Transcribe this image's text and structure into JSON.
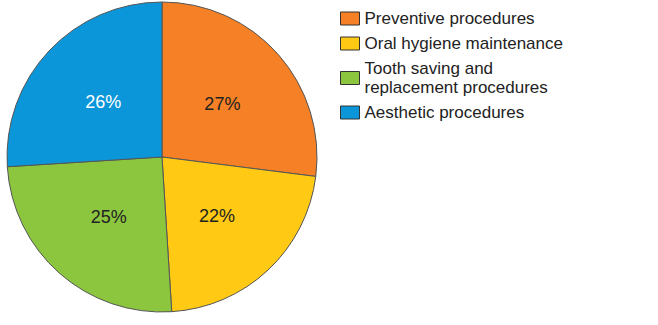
{
  "chart_data": {
    "type": "pie",
    "categories": [
      "Preventive procedures",
      "Oral hygiene maintenance",
      "Tooth saving and\nreplacement procedures",
      "Aesthetic procedures"
    ],
    "values": [
      27,
      22,
      25,
      26
    ],
    "value_labels": [
      "27%",
      "22%",
      "25%",
      "26%"
    ],
    "colors": [
      "#f58025",
      "#ffc914",
      "#8cc63f",
      "#0a96d9"
    ],
    "data_labels": true,
    "legend": "right"
  }
}
